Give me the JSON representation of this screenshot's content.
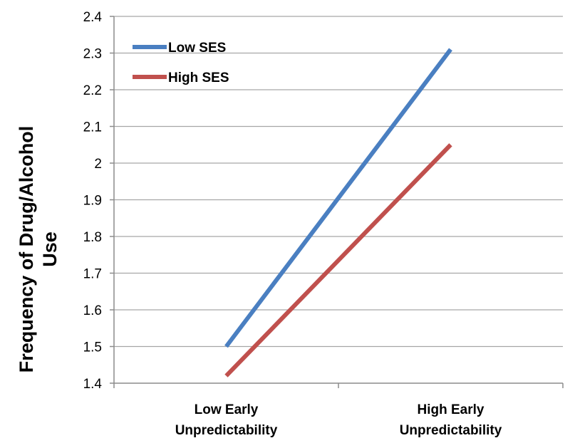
{
  "chart_data": {
    "type": "line",
    "title": "",
    "xlabel": "",
    "ylabel": "Frequency of Drug/Alcohol Use",
    "ylabel_lines": [
      "Frequency of Drug/Alcohol",
      "Use"
    ],
    "categories": [
      "Low Early Unpredictability",
      "High Early Unpredictability"
    ],
    "category_lines": [
      [
        "Low Early",
        "Unpredictability"
      ],
      [
        "High Early",
        "Unpredictability"
      ]
    ],
    "ylim": [
      1.4,
      2.4
    ],
    "yticks": [
      "1.4",
      "1.5",
      "1.6",
      "1.7",
      "1.8",
      "1.9",
      "2",
      "2.1",
      "2.2",
      "2.3",
      "2.4"
    ],
    "grid": true,
    "legend_position": "top-left",
    "series": [
      {
        "name": "Low SES",
        "values": [
          1.5,
          2.31
        ],
        "color": "#4a7fc1"
      },
      {
        "name": "High SES",
        "values": [
          1.42,
          2.05
        ],
        "color": "#c0504d"
      }
    ]
  }
}
